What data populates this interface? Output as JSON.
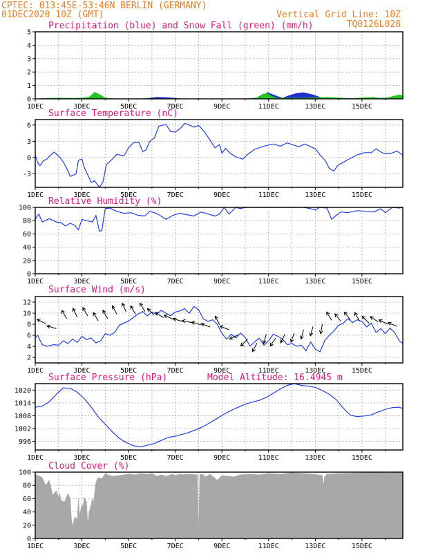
{
  "header": {
    "line1_left": "CPTEC:  013:45E-53:46N  BERLIN (GERMANY)",
    "line2_left": "01DEC2020 10Z (GMT)",
    "line1_right": "Vertical Grid Line: 10Z",
    "line2_right": "TQ0126L028",
    "model_altitude": "Model Altitude: 16.4945 m"
  },
  "colors": {
    "header": "#e87d1e",
    "panel_title": "#e0157a",
    "line": "#1f3fe0",
    "precip": "#1f2fd0",
    "snow": "#22c322",
    "cloud": "#a8a8a8"
  },
  "chart_data": [
    {
      "id": "precip",
      "type": "area",
      "title": "Precipitation (blue) and Snow Fall (green) (mm/h)",
      "x_tick_labels": [
        "1DEC",
        "3DEC",
        "5DEC",
        "7DEC",
        "9DEC",
        "11DEC",
        "13DEC",
        "15DEC"
      ],
      "ylim": [
        0,
        5
      ],
      "yticks": [
        0,
        1,
        2,
        3,
        4,
        5
      ],
      "series": [
        {
          "key": "blue",
          "x": [
            0,
            4.4,
            4.8,
            5.2,
            5.6,
            6.0,
            6.3,
            9.5,
            9.7,
            9.95,
            10.2,
            10.6,
            10.8,
            11.2,
            11.5,
            11.9,
            12.2,
            12.5,
            13.0,
            14.5,
            15.0,
            15.5,
            15.75
          ],
          "values": [
            0,
            0,
            0.03,
            0.12,
            0.1,
            0.05,
            0,
            0,
            0.15,
            0.48,
            0.3,
            0.05,
            0.2,
            0.42,
            0.47,
            0.3,
            0.12,
            0.04,
            0,
            0,
            0.06,
            0.13,
            0.06
          ]
        },
        {
          "key": "green",
          "x": [
            0,
            0.5,
            1.0,
            1.5,
            2.0,
            2.3,
            2.55,
            2.8,
            3.0,
            3.3,
            6.0,
            9.0,
            9.5,
            9.75,
            9.95,
            10.15,
            10.4,
            11.5,
            12.0,
            12.5,
            13.0,
            13.5,
            14.0,
            14.5,
            14.8,
            15.1,
            15.4,
            15.6,
            15.75
          ],
          "values": [
            0,
            0.05,
            0.06,
            0.05,
            0.06,
            0.12,
            0.5,
            0.28,
            0.06,
            0.02,
            0,
            0,
            0.08,
            0.35,
            0.4,
            0.18,
            0.05,
            0.06,
            0.08,
            0.12,
            0.07,
            0.03,
            0.07,
            0.12,
            0.05,
            0.08,
            0.22,
            0.3,
            0.25
          ]
        }
      ]
    },
    {
      "id": "temperature",
      "type": "line",
      "title": "Surface Temperature (nC)",
      "x_tick_labels": [
        "1DEC",
        "3DEC",
        "5DEC",
        "7DEC",
        "9DEC",
        "11DEC",
        "13DEC",
        "15DEC"
      ],
      "ylim": [
        -5.5,
        7
      ],
      "yticks": [
        -3,
        0,
        3,
        6
      ],
      "x": [
        0,
        0.1,
        0.2,
        0.35,
        0.5,
        0.6,
        0.8,
        1.0,
        1.2,
        1.35,
        1.5,
        1.75,
        1.85,
        2.0,
        2.1,
        2.25,
        2.4,
        2.55,
        2.75,
        2.9,
        3.05,
        3.2,
        3.5,
        3.8,
        4.0,
        4.2,
        4.45,
        4.6,
        4.75,
        4.9,
        5.1,
        5.3,
        5.6,
        5.8,
        6.0,
        6.2,
        6.4,
        6.6,
        6.8,
        7.0,
        7.2,
        7.45,
        7.7,
        7.9,
        8.0,
        8.15,
        8.35,
        8.6,
        8.9,
        9.1,
        9.4,
        9.8,
        10.2,
        10.5,
        10.8,
        11.0,
        11.3,
        11.55,
        11.8,
        12.0,
        12.2,
        12.45,
        12.6,
        12.8,
        12.95,
        13.15,
        13.4,
        13.8,
        14.1,
        14.4,
        14.6,
        14.9,
        15.2,
        15.5,
        15.75
      ],
      "values": [
        0.5,
        -0.9,
        -1.5,
        -0.6,
        -0.3,
        0.2,
        1.0,
        0.3,
        -0.8,
        -2.0,
        -3.5,
        -3.0,
        -0.5,
        -0.3,
        -1.8,
        -3.2,
        -4.6,
        -4.3,
        -5.5,
        -4.5,
        -1.3,
        -0.7,
        0.6,
        0.3,
        1.8,
        2.7,
        2.8,
        1.1,
        1.4,
        2.9,
        3.6,
        5.8,
        6.1,
        4.8,
        4.7,
        5.3,
        6.3,
        6.0,
        5.6,
        5.9,
        5.0,
        3.5,
        1.8,
        2.4,
        0.8,
        1.7,
        0.8,
        0.1,
        -0.3,
        0.6,
        1.5,
        2.1,
        2.5,
        2.1,
        2.7,
        2.4,
        2.0,
        2.5,
        2.0,
        1.6,
        0.5,
        -0.7,
        -2.0,
        -2.5,
        -1.5,
        -1.0,
        -0.4,
        0.5,
        0.9,
        0.9,
        1.6,
        0.8,
        0.7,
        1.2,
        0.4
      ]
    },
    {
      "id": "humidity",
      "type": "line",
      "title": "Relative Humidity (%)",
      "x_tick_labels": [
        "1DEC",
        "3DEC",
        "5DEC",
        "7DEC",
        "9DEC",
        "11DEC",
        "13DEC",
        "15DEC"
      ],
      "ylim": [
        0,
        100
      ],
      "yticks": [
        0,
        20,
        40,
        60,
        80,
        100
      ],
      "x": [
        0,
        0.15,
        0.3,
        0.6,
        0.9,
        1.1,
        1.3,
        1.5,
        1.7,
        1.85,
        2.0,
        2.2,
        2.45,
        2.6,
        2.75,
        2.85,
        3.0,
        3.2,
        3.5,
        3.8,
        4.1,
        4.4,
        4.7,
        4.9,
        5.1,
        5.3,
        5.6,
        5.9,
        6.2,
        6.5,
        6.8,
        7.1,
        7.4,
        7.7,
        7.9,
        8.1,
        8.3,
        8.6,
        8.8,
        9.0,
        9.5,
        10.0,
        10.5,
        11.0,
        11.5,
        11.8,
        12.0,
        12.2,
        12.5,
        12.7,
        12.9,
        13.1,
        13.4,
        13.8,
        14.2,
        14.5,
        14.8,
        15.0,
        15.3,
        15.6,
        15.75
      ],
      "values": [
        82,
        90,
        78,
        83,
        78,
        77,
        72,
        76,
        73,
        66,
        82,
        80,
        78,
        88,
        64,
        65,
        98,
        99,
        94,
        91,
        92,
        88,
        87,
        94,
        92,
        89,
        82,
        88,
        91,
        89,
        87,
        93,
        90,
        87,
        90,
        100,
        90,
        100,
        98,
        100,
        100,
        100,
        100,
        100,
        100,
        98,
        96,
        100,
        99,
        82,
        88,
        93,
        92,
        95,
        94,
        93,
        98,
        92,
        100,
        99,
        100
      ]
    },
    {
      "id": "wind",
      "type": "line",
      "title": "Surface Wind (m/s)",
      "x_tick_labels": [
        "1DEC",
        "3DEC",
        "5DEC",
        "7DEC",
        "9DEC",
        "11DEC",
        "13DEC",
        "15DEC"
      ],
      "ylim": [
        1,
        13
      ],
      "yticks": [
        2,
        4,
        6,
        8,
        10,
        12
      ],
      "x": [
        0,
        0.1,
        0.3,
        0.5,
        0.8,
        1.0,
        1.2,
        1.4,
        1.6,
        1.8,
        2.0,
        2.2,
        2.4,
        2.6,
        2.8,
        3.0,
        3.2,
        3.4,
        3.6,
        3.8,
        4.0,
        4.2,
        4.4,
        4.6,
        4.8,
        5.0,
        5.2,
        5.4,
        5.6,
        5.8,
        6.0,
        6.2,
        6.4,
        6.6,
        6.8,
        7.0,
        7.2,
        7.4,
        7.6,
        7.8,
        8.0,
        8.2,
        8.4,
        8.6,
        8.8,
        9.0,
        9.2,
        9.4,
        9.6,
        9.8,
        10.0,
        10.2,
        10.4,
        10.6,
        10.8,
        11.0,
        11.2,
        11.4,
        11.6,
        11.8,
        12.0,
        12.2,
        12.4,
        12.6,
        12.8,
        13.0,
        13.2,
        13.4,
        13.6,
        13.8,
        14.0,
        14.2,
        14.4,
        14.6,
        14.8,
        15.0,
        15.2,
        15.4,
        15.6,
        15.75
      ],
      "values": [
        5.5,
        6.0,
        4.3,
        4.0,
        4.3,
        4.2,
        5.0,
        4.5,
        5.3,
        4.7,
        5.8,
        5.2,
        5.5,
        4.6,
        5.0,
        6.3,
        6.0,
        6.5,
        7.8,
        8.2,
        8.6,
        9.2,
        9.8,
        10.3,
        9.5,
        10.2,
        9.8,
        10.5,
        10.0,
        9.5,
        10.2,
        10.4,
        10.8,
        10.0,
        11.2,
        10.6,
        9.0,
        8.5,
        8.8,
        8.0,
        6.3,
        5.3,
        6.2,
        5.5,
        6.4,
        5.6,
        4.0,
        4.8,
        5.5,
        4.2,
        5.0,
        6.2,
        5.8,
        5.3,
        4.3,
        4.5,
        4.0,
        4.2,
        3.2,
        4.8,
        3.5,
        3.0,
        5.0,
        6.0,
        6.8,
        7.8,
        8.2,
        9.0,
        8.3,
        8.8,
        8.5,
        7.5,
        8.2,
        6.5,
        7.2,
        6.3,
        7.3,
        6.5,
        5.0,
        4.5
      ]
    },
    {
      "id": "pressure",
      "type": "line",
      "title": "Surface Pressure (hPa)",
      "x_tick_labels": [
        "1DEC",
        "3DEC",
        "5DEC",
        "7DEC",
        "9DEC",
        "11DEC",
        "13DEC",
        "15DEC"
      ],
      "ylim": [
        992,
        1023
      ],
      "yticks": [
        996,
        1002,
        1008,
        1014,
        1020
      ],
      "x": [
        0,
        0.3,
        0.6,
        0.9,
        1.2,
        1.5,
        1.8,
        2.1,
        2.4,
        2.7,
        3.0,
        3.3,
        3.6,
        3.9,
        4.2,
        4.5,
        4.8,
        5.1,
        5.4,
        5.7,
        6.0,
        6.3,
        6.6,
        6.9,
        7.2,
        7.5,
        7.8,
        8.1,
        8.4,
        8.7,
        9.0,
        9.3,
        9.6,
        9.9,
        10.2,
        10.5,
        10.8,
        11.1,
        11.4,
        11.7,
        12.0,
        12.3,
        12.6,
        12.9,
        13.2,
        13.5,
        13.8,
        14.1,
        14.4,
        14.7,
        15.0,
        15.3,
        15.6,
        15.75
      ],
      "values": [
        1012,
        1012.5,
        1014.5,
        1018,
        1021,
        1020.8,
        1019,
        1016,
        1012,
        1007.5,
        1004,
        1000.5,
        997.5,
        995.5,
        994,
        993.5,
        994.2,
        995,
        996.5,
        997.8,
        998.5,
        999.3,
        1000.3,
        1001.5,
        1003,
        1004.8,
        1006.8,
        1008.8,
        1010.5,
        1012,
        1013.4,
        1014.4,
        1015.2,
        1016.6,
        1018.5,
        1020.5,
        1022.2,
        1023,
        1022.2,
        1021.8,
        1021.3,
        1019.8,
        1018,
        1015.5,
        1011.5,
        1008.3,
        1007.6,
        1007.9,
        1008.4,
        1009.8,
        1011,
        1011.8,
        1012,
        1011.3
      ]
    },
    {
      "id": "cloud",
      "type": "area",
      "title": "Cloud Cover (%)",
      "x_tick_labels": [
        "1DEC",
        "3DEC",
        "5DEC",
        "7DEC",
        "9DEC",
        "11DEC",
        "13DEC",
        "15DEC"
      ],
      "ylim": [
        0,
        100
      ],
      "yticks": [
        0,
        20,
        40,
        60,
        80,
        100
      ],
      "x": [
        0,
        0.3,
        0.45,
        0.6,
        0.75,
        0.9,
        1.0,
        1.05,
        1.1,
        1.25,
        1.4,
        1.5,
        1.55,
        1.6,
        1.7,
        1.8,
        1.85,
        1.9,
        2.0,
        2.05,
        2.1,
        2.2,
        2.25,
        2.3,
        2.45,
        2.5,
        2.6,
        2.7,
        2.85,
        3.0,
        3.1,
        3.3,
        3.6,
        4.0,
        4.3,
        4.5,
        4.8,
        5.0,
        5.2,
        5.4,
        5.6,
        5.9,
        6.0,
        6.2,
        6.3,
        6.5,
        6.95,
        7.0,
        7.05,
        7.1,
        7.2,
        7.3,
        7.5,
        7.8,
        8.0,
        8.5,
        8.8,
        9.2,
        9.6,
        10.0,
        10.5,
        11.0,
        11.5,
        11.9,
        12.3,
        12.35,
        12.4,
        12.5,
        13.0,
        14.0,
        14.5,
        15.0,
        15.75
      ],
      "values": [
        97,
        92,
        80,
        88,
        65,
        72,
        62,
        68,
        58,
        55,
        68,
        60,
        30,
        18,
        33,
        28,
        60,
        35,
        52,
        48,
        62,
        55,
        20,
        38,
        60,
        55,
        85,
        92,
        90,
        98,
        96,
        94,
        95,
        97,
        96,
        98,
        97,
        98,
        94,
        96,
        94,
        97,
        95,
        97,
        96,
        97,
        96,
        2,
        96,
        97,
        96,
        93,
        97,
        88,
        95,
        93,
        96,
        97,
        96,
        98,
        97,
        99,
        98,
        97,
        95,
        80,
        93,
        97,
        98,
        99,
        100,
        99,
        100
      ]
    }
  ]
}
